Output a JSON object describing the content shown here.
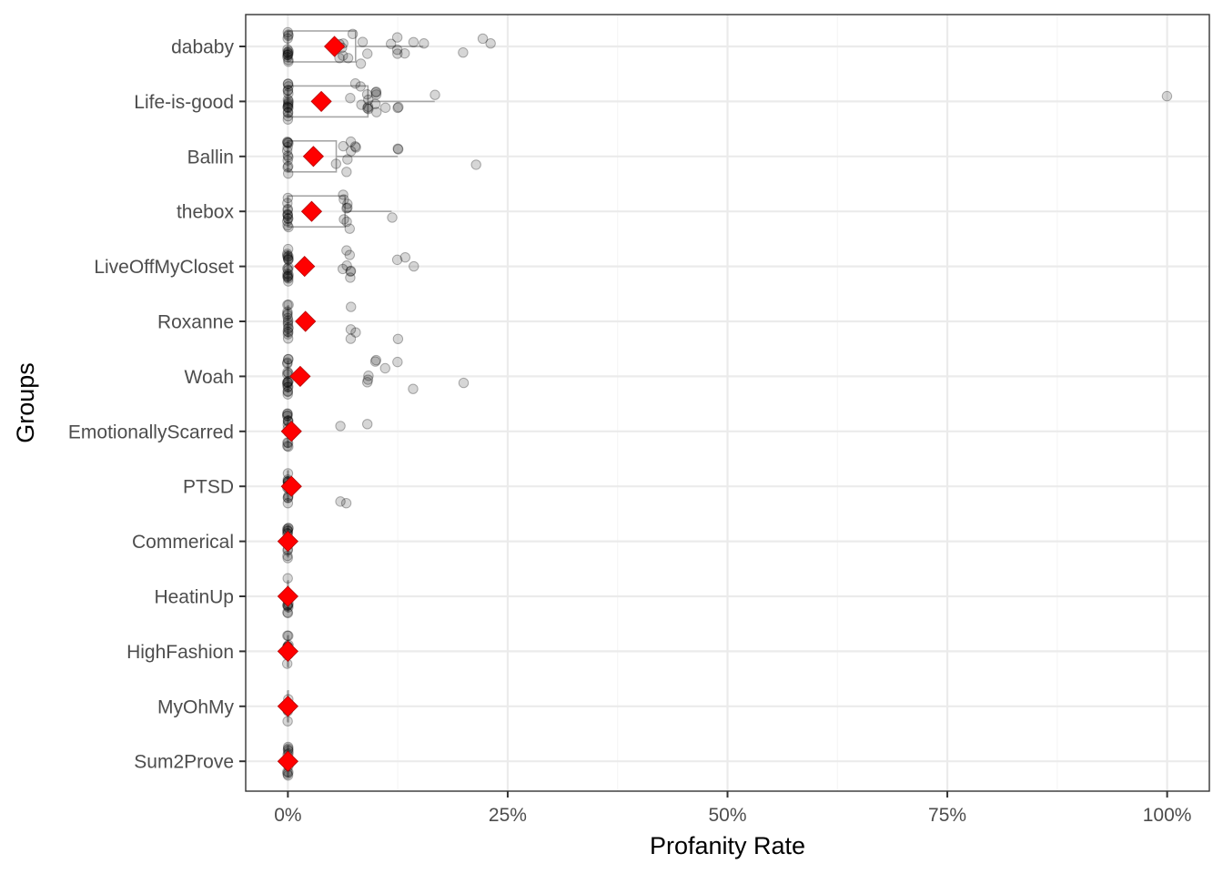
{
  "chart_data": {
    "type": "box",
    "title": "",
    "xlabel": "Profanity Rate",
    "ylabel": "Groups",
    "xlim": [
      -0.048,
      1.048
    ],
    "x_ticks": [
      0,
      0.25,
      0.5,
      0.75,
      1.0
    ],
    "x_tick_labels": [
      "0%",
      "25%",
      "50%",
      "75%",
      "100%"
    ],
    "grid": true,
    "legend": "none",
    "categories": [
      "dababy",
      "Life-is-good",
      "Ballin",
      "thebox",
      "LiveOffMyCloset",
      "Roxanne",
      "Woah",
      "EmotionallyScarred",
      "PTSD",
      "Commerical",
      "HeatinUp",
      "HighFashion",
      "MyOhMy",
      "Sum2Prove"
    ],
    "means": [
      0.053,
      0.038,
      0.029,
      0.027,
      0.019,
      0.02,
      0.014,
      0.004,
      0.004,
      0.0,
      0.0,
      0.0,
      0.0,
      0.0
    ],
    "boxes": [
      {
        "q1": 0.0,
        "median": 0.0,
        "q3": 0.077,
        "whisker_high": 0.154
      },
      {
        "q1": 0.0,
        "median": 0.0,
        "q3": 0.091,
        "whisker_high": 0.167
      },
      {
        "q1": 0.0,
        "median": 0.0,
        "q3": 0.055,
        "whisker_high": 0.125
      },
      {
        "q1": 0.0,
        "median": 0.0,
        "q3": 0.065,
        "whisker_high": 0.118
      },
      {
        "q1": 0.0,
        "median": 0.0,
        "q3": 0.0,
        "whisker_high": 0.0
      },
      {
        "q1": 0.0,
        "median": 0.0,
        "q3": 0.0,
        "whisker_high": 0.0
      },
      {
        "q1": 0.0,
        "median": 0.0,
        "q3": 0.0,
        "whisker_high": 0.0
      },
      {
        "q1": 0.0,
        "median": 0.0,
        "q3": 0.0,
        "whisker_high": 0.0
      },
      {
        "q1": 0.0,
        "median": 0.0,
        "q3": 0.0,
        "whisker_high": 0.0
      },
      {
        "q1": 0.0,
        "median": 0.0,
        "q3": 0.0,
        "whisker_high": 0.0
      },
      {
        "q1": 0.0,
        "median": 0.0,
        "q3": 0.0,
        "whisker_high": 0.0
      },
      {
        "q1": 0.0,
        "median": 0.0,
        "q3": 0.0,
        "whisker_high": 0.0
      },
      {
        "q1": 0.0,
        "median": 0.0,
        "q3": 0.0,
        "whisker_high": 0.0
      },
      {
        "q1": 0.0,
        "median": 0.0,
        "q3": 0.0,
        "whisker_high": 0.0
      }
    ],
    "points": [
      [
        0.0,
        0.0,
        0.0,
        0.0,
        0.0,
        0.0,
        0.0,
        0.0,
        0.0,
        0.0,
        0.0,
        0.0,
        0.0,
        0.0,
        0.063,
        0.069,
        0.074,
        0.085,
        0.083,
        0.063,
        0.058,
        0.059,
        0.061,
        0.091,
        0.125,
        0.133,
        0.125,
        0.143,
        0.154,
        0.118,
        0.125,
        0.2,
        0.222,
        0.231
      ],
      [
        0.0,
        0.0,
        0.0,
        0.0,
        0.0,
        0.0,
        0.0,
        0.0,
        0.0,
        0.0,
        0.0,
        0.0,
        0.0,
        0.0,
        0.0,
        0.0,
        0.0,
        0.0,
        0.083,
        0.091,
        0.1,
        0.1,
        0.071,
        0.077,
        0.091,
        0.1,
        0.083,
        0.091,
        0.1,
        0.091,
        0.111,
        0.125,
        0.091,
        0.1,
        0.125,
        0.167,
        1.0
      ],
      [
        0.0,
        0.0,
        0.0,
        0.0,
        0.0,
        0.0,
        0.0,
        0.0,
        0.0,
        0.0,
        0.0,
        0.0,
        0.055,
        0.063,
        0.067,
        0.071,
        0.071,
        0.077,
        0.067,
        0.077,
        0.125,
        0.125,
        0.214
      ],
      [
        0.0,
        0.0,
        0.0,
        0.0,
        0.0,
        0.0,
        0.0,
        0.0,
        0.0,
        0.0,
        0.0,
        0.0,
        0.063,
        0.067,
        0.071,
        0.067,
        0.063,
        0.067,
        0.063,
        0.067,
        0.118
      ],
      [
        0.0,
        0.0,
        0.0,
        0.0,
        0.0,
        0.0,
        0.0,
        0.0,
        0.0,
        0.0,
        0.0,
        0.0,
        0.0,
        0.0,
        0.0,
        0.0,
        0.0,
        0.0,
        0.067,
        0.067,
        0.071,
        0.071,
        0.133,
        0.143,
        0.063,
        0.071,
        0.071,
        0.125
      ],
      [
        0.0,
        0.0,
        0.0,
        0.0,
        0.0,
        0.0,
        0.0,
        0.0,
        0.0,
        0.0,
        0.0,
        0.0,
        0.0,
        0.0,
        0.0,
        0.071,
        0.077,
        0.071,
        0.071,
        0.125
      ],
      [
        0.0,
        0.0,
        0.0,
        0.0,
        0.0,
        0.0,
        0.0,
        0.0,
        0.0,
        0.0,
        0.0,
        0.0,
        0.0,
        0.0,
        0.0,
        0.0,
        0.0,
        0.091,
        0.091,
        0.111,
        0.1,
        0.125,
        0.143,
        0.091,
        0.1,
        0.2
      ],
      [
        0.0,
        0.0,
        0.0,
        0.0,
        0.0,
        0.0,
        0.0,
        0.0,
        0.0,
        0.0,
        0.0,
        0.0,
        0.0,
        0.0,
        0.059,
        0.091
      ],
      [
        0.0,
        0.0,
        0.0,
        0.0,
        0.0,
        0.0,
        0.0,
        0.0,
        0.0,
        0.0,
        0.0,
        0.0,
        0.0,
        0.0,
        0.059,
        0.067
      ],
      [
        0.0,
        0.0,
        0.0,
        0.0,
        0.0,
        0.0,
        0.0,
        0.0,
        0.0,
        0.0,
        0.0,
        0.0
      ],
      [
        0.0,
        0.0,
        0.0,
        0.0,
        0.0,
        0.0,
        0.0,
        0.0,
        0.0,
        0.0,
        0.0,
        0.0
      ],
      [
        0.0,
        0.0,
        0.0,
        0.0,
        0.0,
        0.0,
        0.0,
        0.0,
        0.0,
        0.0,
        0.0,
        0.0
      ],
      [
        0.0,
        0.0,
        0.0,
        0.0,
        0.0,
        0.0
      ],
      [
        0.0,
        0.0,
        0.0,
        0.0,
        0.0,
        0.0,
        0.0,
        0.0,
        0.0,
        0.0,
        0.0,
        0.0
      ]
    ],
    "colors": {
      "mean_marker": "#ff0000",
      "points": "#000000",
      "box": "#a6a6a6",
      "grid_major": "#ebebeb",
      "grid_minor": "#f5f5f5",
      "panel_border": "#333333"
    }
  }
}
